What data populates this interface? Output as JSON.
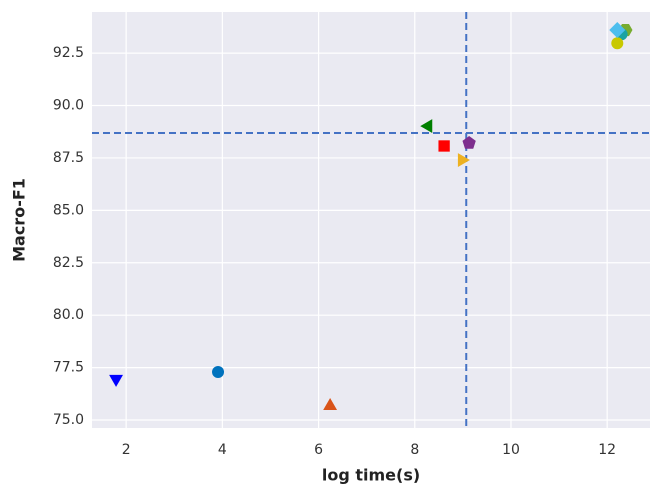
{
  "chart_data": {
    "type": "scatter",
    "xlabel": "log time(s)",
    "ylabel": "Macro-F1",
    "xlim": [
      1.29,
      12.89
    ],
    "ylim": [
      74.62,
      94.46
    ],
    "xticks": [
      2,
      4,
      6,
      8,
      10,
      12
    ],
    "yticks": [
      {
        "value": 75,
        "label": "75.0"
      },
      {
        "value": 77.5,
        "label": "77.5"
      },
      {
        "value": 80,
        "label": "80.0"
      },
      {
        "value": 82.5,
        "label": "82.5"
      },
      {
        "value": 85,
        "label": "85.0"
      },
      {
        "value": 87.5,
        "label": "87.5"
      },
      {
        "value": 90,
        "label": "90.0"
      },
      {
        "value": 92.5,
        "label": "92.5"
      }
    ],
    "grid": true,
    "vlines": [
      9.07
    ],
    "hlines": [
      88.69
    ],
    "refline_color": "#4472c4",
    "series": [
      {
        "color": "#0000ff",
        "marker": "triangle-down",
        "x": [
          1.79
        ],
        "values": [
          76.96
        ]
      },
      {
        "color": "#0072bd",
        "marker": "circle",
        "x": [
          3.91
        ],
        "values": [
          77.29
        ]
      },
      {
        "color": "#d95319",
        "marker": "triangle-up",
        "x": [
          6.24
        ],
        "values": [
          75.67
        ]
      },
      {
        "color": "#007f00",
        "marker": "triangle-left",
        "x": [
          8.28
        ],
        "values": [
          89.02
        ]
      },
      {
        "color": "#ff0000",
        "marker": "square",
        "x": [
          8.61
        ],
        "values": [
          88.07
        ]
      },
      {
        "color": "#7e2f8e",
        "marker": "pentagon",
        "x": [
          9.13
        ],
        "values": [
          88.21
        ]
      },
      {
        "color": "#edb120",
        "marker": "triangle-right",
        "x": [
          8.98
        ],
        "values": [
          87.4
        ]
      },
      {
        "color": "#77ac30",
        "marker": "hexagon",
        "x": [
          12.38
        ],
        "values": [
          93.6
        ]
      },
      {
        "color": "#1aa3a3",
        "marker": "circle",
        "x": [
          12.3
        ],
        "values": [
          93.4
        ]
      },
      {
        "color": "#c8c800",
        "marker": "circle",
        "x": [
          12.21
        ],
        "values": [
          92.97
        ]
      },
      {
        "color": "#4dbeee",
        "marker": "diamond",
        "x": [
          12.21
        ],
        "values": [
          93.6
        ]
      }
    ]
  }
}
